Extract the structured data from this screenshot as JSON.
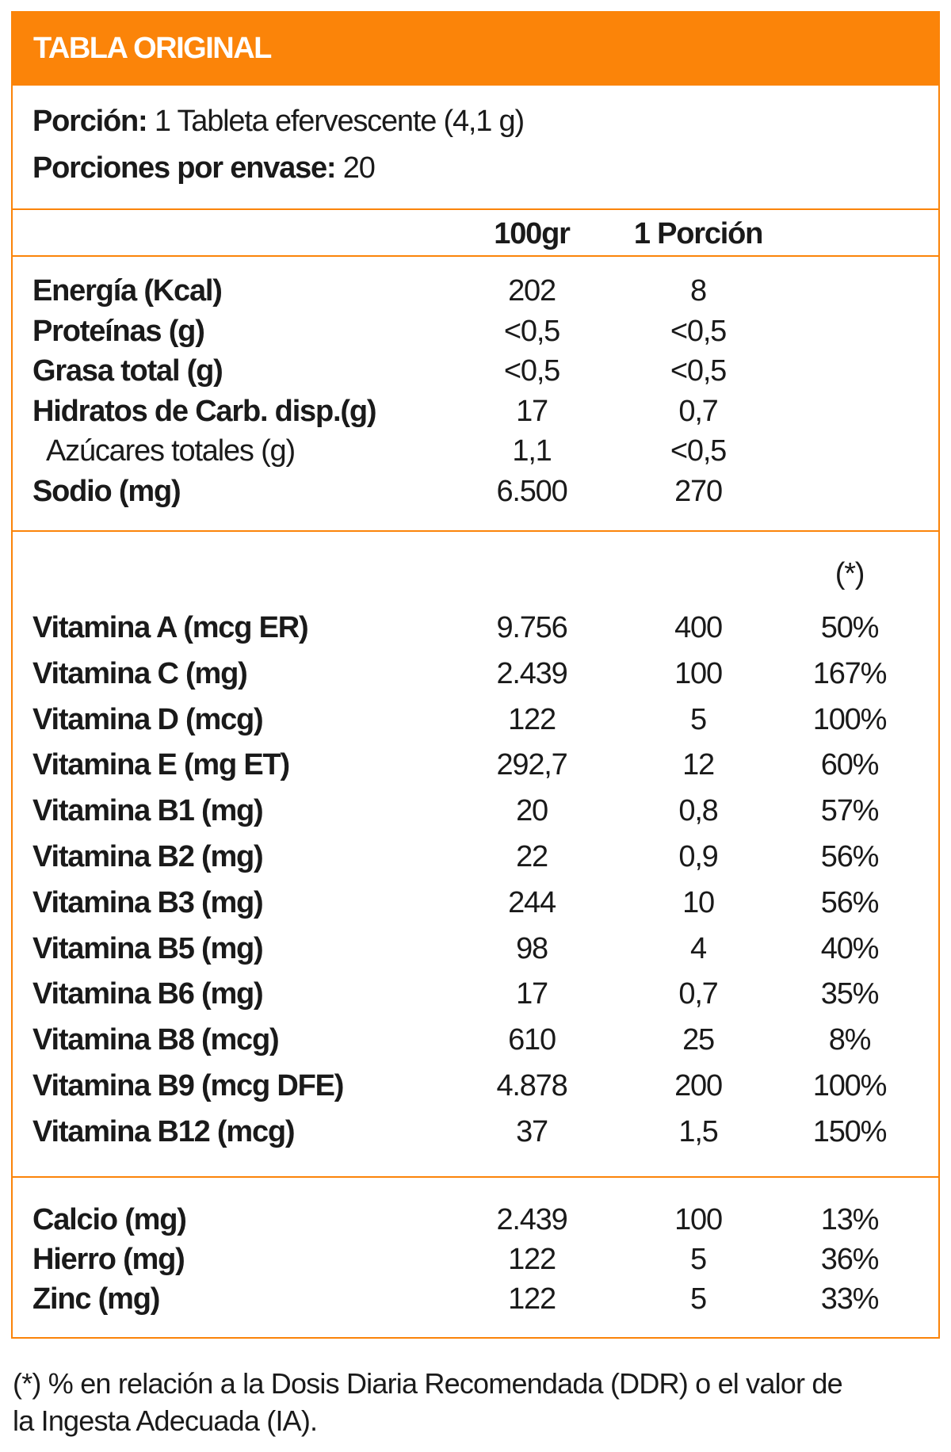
{
  "title": "TABLA ORIGINAL",
  "serving": {
    "label": "Porción:",
    "value": "1 Tableta efervescente (4,1 g)"
  },
  "servings_per_container": {
    "label": "Porciones por envase:",
    "value": "20"
  },
  "columns": {
    "per100": "100gr",
    "per_serving": "1 Porción",
    "pct": "(*)"
  },
  "macros": [
    {
      "name": "Energía (Kcal)",
      "per100": "202",
      "per_serving": "8",
      "bold": true
    },
    {
      "name": "Proteínas (g)",
      "per100": "<0,5",
      "per_serving": "<0,5",
      "bold": true
    },
    {
      "name": "Grasa total (g)",
      "per100": "<0,5",
      "per_serving": "<0,5",
      "bold": true
    },
    {
      "name": "Hidratos de Carb. disp.(g)",
      "per100": "17",
      "per_serving": "0,7",
      "bold": true
    },
    {
      "name": "Azúcares totales (g)",
      "per100": "1,1",
      "per_serving": "<0,5",
      "bold": false
    },
    {
      "name": "Sodio (mg)",
      "per100": "6.500",
      "per_serving": "270",
      "bold": true
    }
  ],
  "vitamins": [
    {
      "name": "Vitamina A (mcg ER)",
      "per100": "9.756",
      "per_serving": "400",
      "pct": "50%"
    },
    {
      "name": "Vitamina C (mg)",
      "per100": "2.439",
      "per_serving": "100",
      "pct": "167%"
    },
    {
      "name": "Vitamina D (mcg)",
      "per100": "122",
      "per_serving": "5",
      "pct": "100%"
    },
    {
      "name": "Vitamina E (mg ET)",
      "per100": "292,7",
      "per_serving": "12",
      "pct": "60%"
    },
    {
      "name": "Vitamina B1 (mg)",
      "per100": "20",
      "per_serving": "0,8",
      "pct": "57%"
    },
    {
      "name": "Vitamina B2 (mg)",
      "per100": "22",
      "per_serving": "0,9",
      "pct": "56%"
    },
    {
      "name": "Vitamina B3 (mg)",
      "per100": "244",
      "per_serving": "10",
      "pct": "56%"
    },
    {
      "name": "Vitamina B5 (mg)",
      "per100": "98",
      "per_serving": "4",
      "pct": "40%"
    },
    {
      "name": "Vitamina B6 (mg)",
      "per100": "17",
      "per_serving": "0,7",
      "pct": "35%"
    },
    {
      "name": "Vitamina B8 (mcg)",
      "per100": "610",
      "per_serving": "25",
      "pct": "8%"
    },
    {
      "name": "Vitamina B9 (mcg DFE)",
      "per100": "4.878",
      "per_serving": "200",
      "pct": "100%"
    },
    {
      "name": "Vitamina B12 (mcg)",
      "per100": "37",
      "per_serving": "1,5",
      "pct": "150%"
    }
  ],
  "minerals": [
    {
      "name": "Calcio (mg)",
      "per100": "2.439",
      "per_serving": "100",
      "pct": "13%"
    },
    {
      "name": "Hierro (mg)",
      "per100": "122",
      "per_serving": "5",
      "pct": "36%"
    },
    {
      "name": "Zinc (mg)",
      "per100": "122",
      "per_serving": "5",
      "pct": "33%"
    }
  ],
  "footnote": [
    "(*) % en relación a la Dosis Diaria Recomendada (DDR) o el valor de",
    "la Ingesta Adecuada (IA)."
  ],
  "colors": {
    "accent": "#fb8409"
  }
}
